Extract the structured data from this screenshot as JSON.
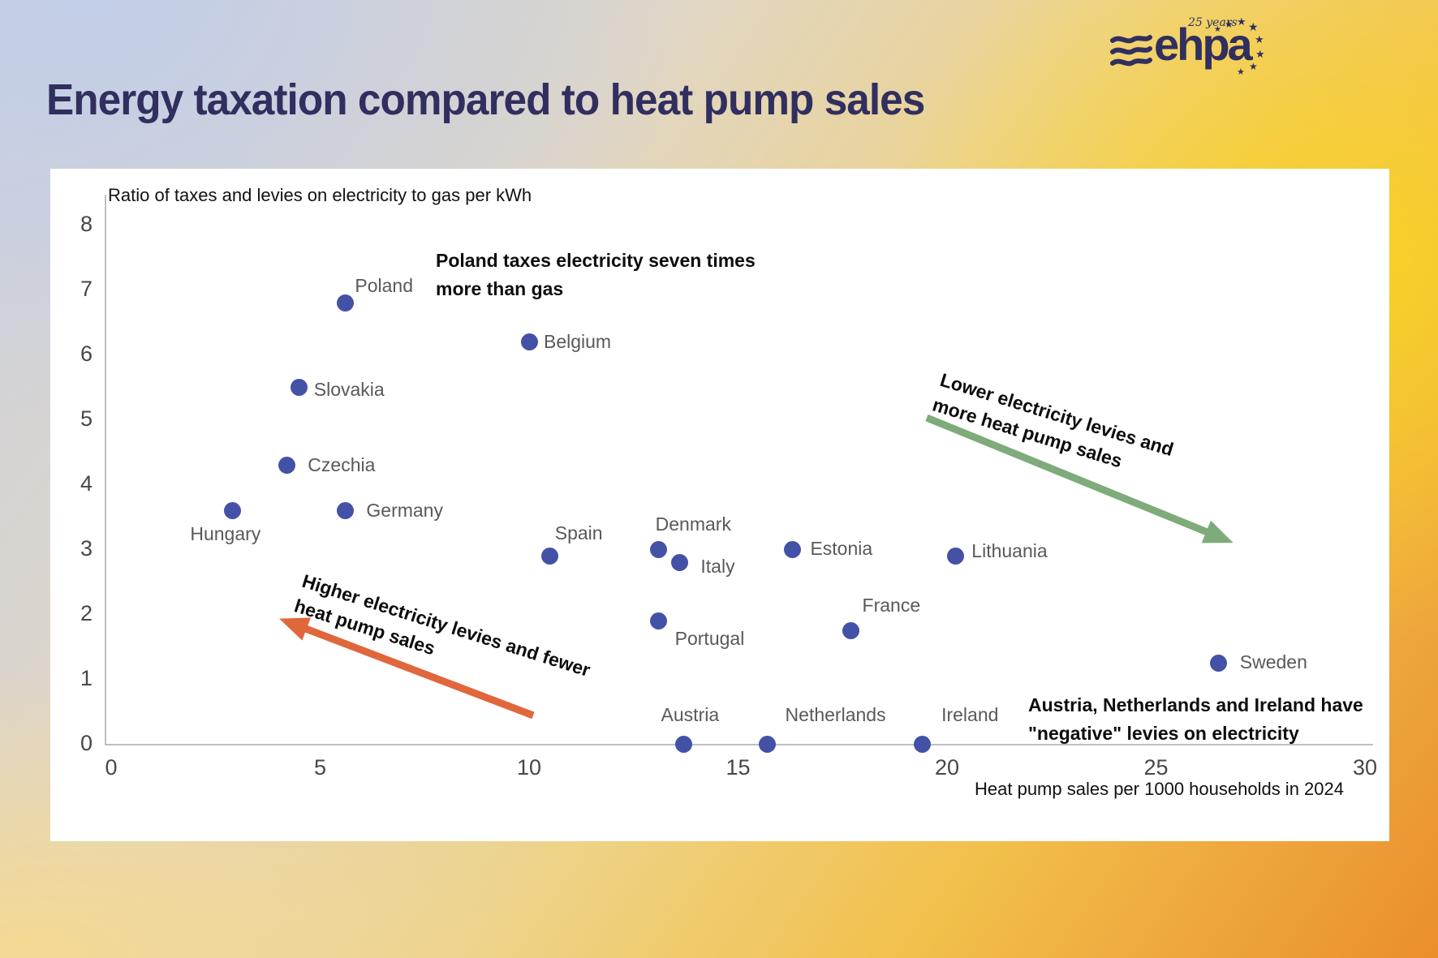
{
  "page": {
    "title": "Energy taxation compared to heat pump sales",
    "logo": {
      "brand": "ehpa",
      "badge": "25 years"
    }
  },
  "chart_data": {
    "type": "scatter",
    "title": "Energy taxation compared to heat pump sales",
    "xlabel": "Heat pump sales per 1000 households in 2024",
    "ylabel": "Ratio of taxes and levies on electricity to gas per kWh",
    "xlim": [
      0,
      30
    ],
    "ylim": [
      0,
      8
    ],
    "x_ticks": [
      0,
      5,
      10,
      15,
      20,
      25,
      30
    ],
    "y_ticks": [
      0,
      1,
      2,
      3,
      4,
      5,
      6,
      7,
      8
    ],
    "grid": false,
    "points": [
      {
        "label": "Poland",
        "x": 5.6,
        "y": 6.8
      },
      {
        "label": "Belgium",
        "x": 10.0,
        "y": 6.2
      },
      {
        "label": "Slovakia",
        "x": 4.5,
        "y": 5.5
      },
      {
        "label": "Czechia",
        "x": 4.2,
        "y": 4.3
      },
      {
        "label": "Hungary",
        "x": 2.9,
        "y": 3.6
      },
      {
        "label": "Germany",
        "x": 5.6,
        "y": 3.6
      },
      {
        "label": "Spain",
        "x": 10.5,
        "y": 2.9
      },
      {
        "label": "Denmark",
        "x": 13.1,
        "y": 3.0
      },
      {
        "label": "Italy",
        "x": 13.6,
        "y": 2.8
      },
      {
        "label": "Estonia",
        "x": 16.3,
        "y": 3.0
      },
      {
        "label": "Lithuania",
        "x": 20.2,
        "y": 2.9
      },
      {
        "label": "Portugal",
        "x": 13.1,
        "y": 1.9
      },
      {
        "label": "France",
        "x": 17.7,
        "y": 1.75
      },
      {
        "label": "Sweden",
        "x": 26.5,
        "y": 1.25
      },
      {
        "label": "Austria",
        "x": 13.7,
        "y": 0
      },
      {
        "label": "Netherlands",
        "x": 15.7,
        "y": 0
      },
      {
        "label": "Ireland",
        "x": 19.4,
        "y": 0
      }
    ],
    "annotations": {
      "poland": {
        "line1": "Poland taxes electricity seven times",
        "line2": "more than gas"
      },
      "lower": {
        "line1": "Lower electricity levies and",
        "line2": "more heat pump sales"
      },
      "higher": {
        "line1": "Higher electricity levies and fewer",
        "line2": "heat pump sales"
      },
      "negative": {
        "line1": "Austria, Netherlands and Ireland have",
        "line2": "\"negative\" levies on electricity"
      }
    },
    "colors": {
      "point": "#4351a7",
      "arrow_green": "#7dab79",
      "arrow_orange": "#e0663c",
      "title": "#312f5f"
    },
    "legend": false
  }
}
